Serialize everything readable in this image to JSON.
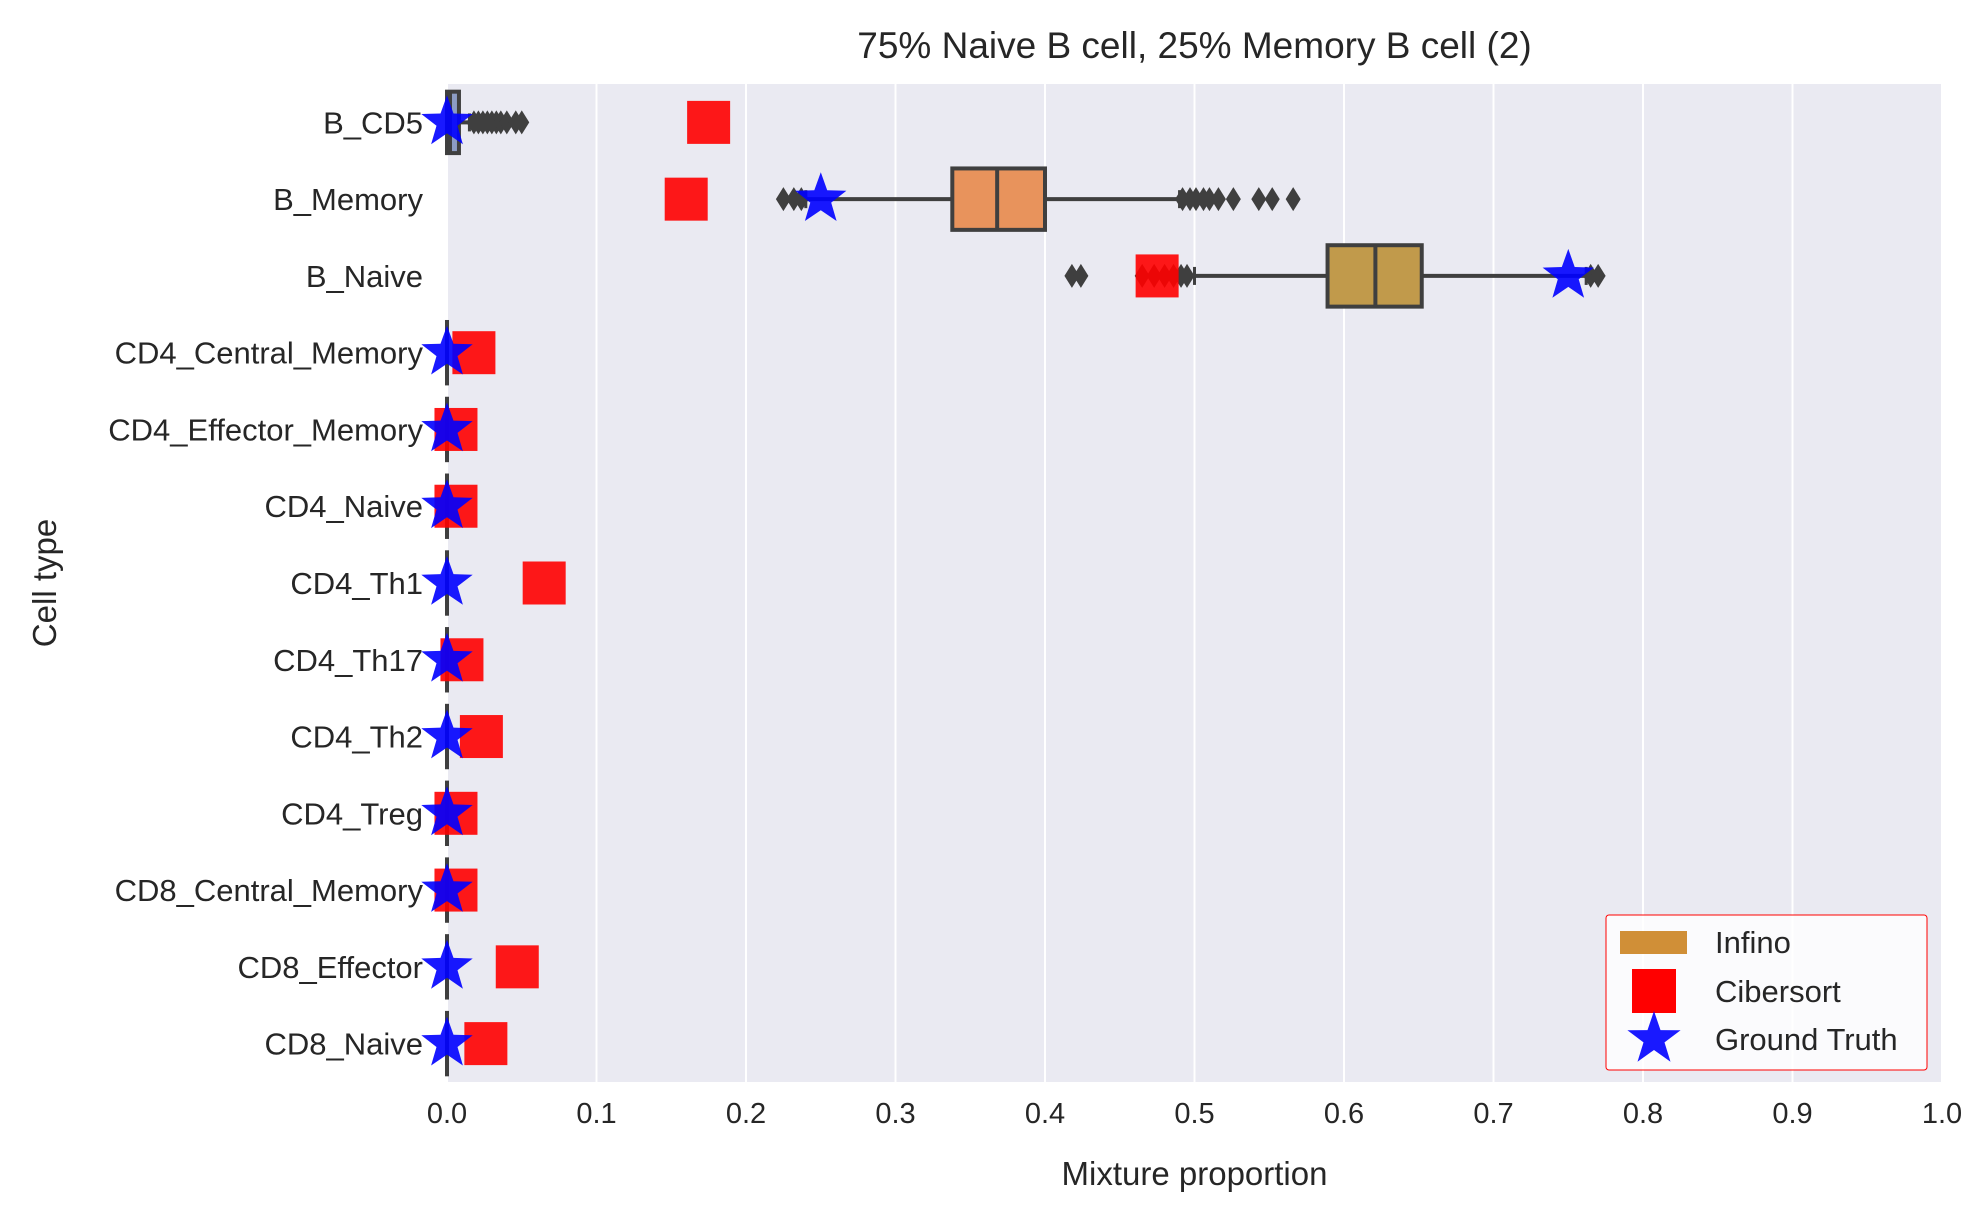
{
  "chart_data": {
    "type": "box",
    "title": "75% Naive B cell, 25% Memory B cell (2)",
    "xlabel": "Mixture proportion",
    "ylabel": "Cell type",
    "xlim": [
      0.0,
      1.0
    ],
    "x_ticks": [
      "0.0",
      "0.1",
      "0.2",
      "0.3",
      "0.4",
      "0.5",
      "0.6",
      "0.7",
      "0.8",
      "0.9",
      "1.0"
    ],
    "grid": true,
    "legend_position": "bottom-right",
    "categories": [
      "B_CD5",
      "B_Memory",
      "B_Naive",
      "CD4_Central_Memory",
      "CD4_Effector_Memory",
      "CD4_Naive",
      "CD4_Th1",
      "CD4_Th17",
      "CD4_Th2",
      "CD4_Treg",
      "CD8_Central_Memory",
      "CD8_Effector",
      "CD8_Naive"
    ],
    "series": [
      {
        "name": "Infino",
        "kind": "boxplot",
        "color": "#d08f37",
        "boxes": [
          {
            "category": "B_CD5",
            "whisker_low": 0.0,
            "q1": 0.0,
            "median": 0.002,
            "q3": 0.008,
            "whisker_high": 0.015,
            "fliers": [
              0.018,
              0.021,
              0.024,
              0.027,
              0.03,
              0.033,
              0.036,
              0.04,
              0.046,
              0.05
            ],
            "color": "#8c9cc4"
          },
          {
            "category": "B_Memory",
            "whisker_low": 0.24,
            "q1": 0.338,
            "median": 0.368,
            "q3": 0.4,
            "whisker_high": 0.49,
            "fliers": [
              0.225,
              0.232,
              0.237,
              0.492,
              0.497,
              0.501,
              0.506,
              0.51,
              0.516,
              0.526,
              0.543,
              0.552,
              0.566
            ],
            "color": "#e8935c"
          },
          {
            "category": "B_Naive",
            "whisker_low": 0.5,
            "q1": 0.589,
            "median": 0.621,
            "q3": 0.652,
            "whisker_high": 0.762,
            "fliers": [
              0.418,
              0.424,
              0.465,
              0.473,
              0.48,
              0.486,
              0.491,
              0.495,
              0.765,
              0.77
            ],
            "color": "#c19a4b"
          },
          {
            "category": "CD4_Central_Memory",
            "whisker_low": 0.0,
            "q1": 0.0,
            "median": 0.0,
            "q3": 0.0,
            "whisker_high": 0.0,
            "fliers": [],
            "color": "#9fb2d6"
          },
          {
            "category": "CD4_Effector_Memory",
            "whisker_low": 0.0,
            "q1": 0.0,
            "median": 0.0,
            "q3": 0.0,
            "whisker_high": 0.0,
            "fliers": [],
            "color": "#9fb2d6"
          },
          {
            "category": "CD4_Naive",
            "whisker_low": 0.0,
            "q1": 0.0,
            "median": 0.0,
            "q3": 0.0,
            "whisker_high": 0.0,
            "fliers": [],
            "color": "#9fb2d6"
          },
          {
            "category": "CD4_Th1",
            "whisker_low": 0.0,
            "q1": 0.0,
            "median": 0.0,
            "q3": 0.0,
            "whisker_high": 0.0,
            "fliers": [],
            "color": "#9fb2d6"
          },
          {
            "category": "CD4_Th17",
            "whisker_low": 0.0,
            "q1": 0.0,
            "median": 0.0,
            "q3": 0.0,
            "whisker_high": 0.0,
            "fliers": [],
            "color": "#9fb2d6"
          },
          {
            "category": "CD4_Th2",
            "whisker_low": 0.0,
            "q1": 0.0,
            "median": 0.0,
            "q3": 0.0,
            "whisker_high": 0.0,
            "fliers": [],
            "color": "#9fb2d6"
          },
          {
            "category": "CD4_Treg",
            "whisker_low": 0.0,
            "q1": 0.0,
            "median": 0.0,
            "q3": 0.0,
            "whisker_high": 0.0,
            "fliers": [],
            "color": "#9fb2d6"
          },
          {
            "category": "CD8_Central_Memory",
            "whisker_low": 0.0,
            "q1": 0.0,
            "median": 0.0,
            "q3": 0.0,
            "whisker_high": 0.0,
            "fliers": [],
            "color": "#9fb2d6"
          },
          {
            "category": "CD8_Effector",
            "whisker_low": 0.0,
            "q1": 0.0,
            "median": 0.0,
            "q3": 0.0,
            "whisker_high": 0.0,
            "fliers": [],
            "color": "#9fb2d6"
          },
          {
            "category": "CD8_Naive",
            "whisker_low": 0.0,
            "q1": 0.0,
            "median": 0.0,
            "q3": 0.0,
            "whisker_high": 0.0,
            "fliers": [],
            "color": "#9fb2d6"
          }
        ]
      },
      {
        "name": "Cibersort",
        "kind": "square-marker",
        "color": "#ff0000",
        "values": [
          0.175,
          0.16,
          0.475,
          0.018,
          0.006,
          0.006,
          0.065,
          0.01,
          0.023,
          0.006,
          0.006,
          0.047,
          0.026
        ]
      },
      {
        "name": "Ground Truth",
        "kind": "star-marker",
        "color": "#0000ff",
        "values": [
          0.0,
          0.25,
          0.75,
          0.0,
          0.0,
          0.0,
          0.0,
          0.0,
          0.0,
          0.0,
          0.0,
          0.0,
          0.0
        ]
      }
    ]
  }
}
